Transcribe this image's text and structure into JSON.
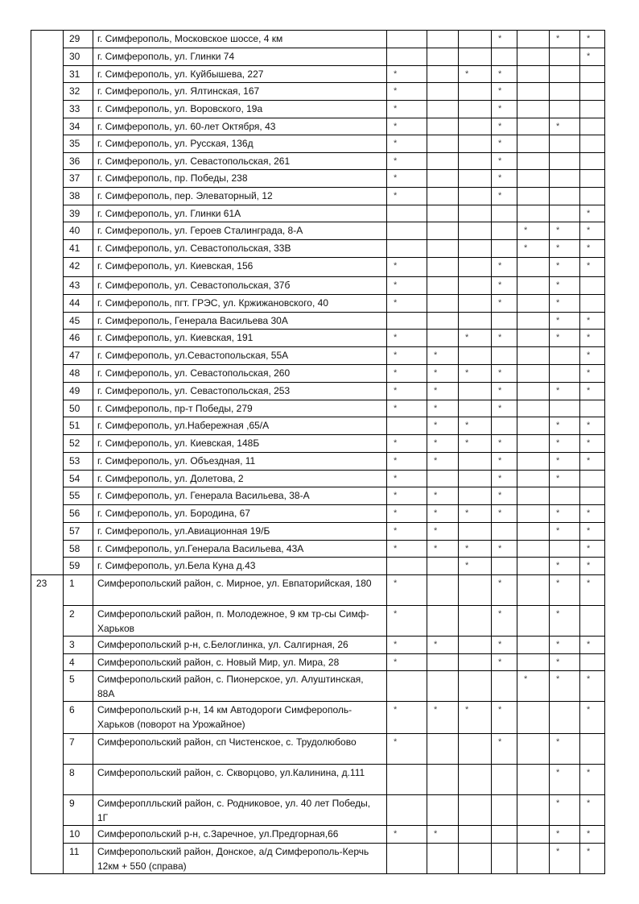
{
  "table": {
    "groups": [
      {
        "label": "",
        "rows": [
          {
            "n": "29",
            "addr": "г. Симферополь, Московское шоссе, 4 км",
            "marks": [
              "",
              "",
              "",
              "*",
              "",
              "*",
              "*"
            ]
          },
          {
            "n": "30",
            "addr": "г. Симферополь, ул. Глинки 74",
            "marks": [
              "",
              "",
              "",
              "",
              "",
              "",
              "*"
            ]
          },
          {
            "n": "31",
            "addr": "г. Симферополь, ул. Куйбышева, 227",
            "marks": [
              "*",
              "",
              "*",
              "*",
              "",
              "",
              ""
            ]
          },
          {
            "n": "32",
            "addr": "г. Симферополь, ул. Ялтинская, 167",
            "marks": [
              "*",
              "",
              "",
              "*",
              "",
              "",
              ""
            ]
          },
          {
            "n": "33",
            "addr": "г. Симферополь, ул. Воровского, 19а",
            "marks": [
              "*",
              "",
              "",
              "*",
              "",
              "",
              ""
            ]
          },
          {
            "n": "34",
            "addr": "г. Симферополь, ул. 60-лет Октября, 43",
            "marks": [
              "*",
              "",
              "",
              "*",
              "",
              "*",
              ""
            ]
          },
          {
            "n": "35",
            "addr": "г. Симферополь, ул. Русская, 136д",
            "marks": [
              "*",
              "",
              "",
              "*",
              "",
              "",
              ""
            ]
          },
          {
            "n": "36",
            "addr": "г. Симферополь, ул. Севастопольская, 261",
            "marks": [
              "*",
              "",
              "",
              "*",
              "",
              "",
              ""
            ]
          },
          {
            "n": "37",
            "addr": "г. Симферополь, пр. Победы, 238",
            "marks": [
              "*",
              "",
              "",
              "*",
              "",
              "",
              ""
            ]
          },
          {
            "n": "38",
            "addr": "г. Симферополь, пер. Элеваторный, 12",
            "marks": [
              "*",
              "",
              "",
              "*",
              "",
              "",
              ""
            ]
          },
          {
            "n": "39",
            "addr": "г. Симферополь, ул. Глинки 61А",
            "marks": [
              "",
              "",
              "",
              "",
              "",
              "",
              "*"
            ]
          },
          {
            "n": "40",
            "addr": "г. Симферополь, ул. Героев Сталинграда, 8-А",
            "marks": [
              "",
              "",
              "",
              "",
              "*",
              "*",
              "*"
            ]
          },
          {
            "n": "41",
            "addr": "г. Симферополь, ул. Севастопольская, 33В",
            "marks": [
              "",
              "",
              "",
              "",
              "*",
              "*",
              "*"
            ]
          },
          {
            "n": "42",
            "addr": "г. Симферополь, ул. Киевская, 156",
            "marks": [
              "*",
              "",
              "",
              "*",
              "",
              "*",
              "*"
            ]
          },
          {
            "n": "43",
            "addr": "г. Симферополь, ул. Севастопольская, 37б",
            "marks": [
              "*",
              "",
              "",
              "*",
              "",
              "*",
              ""
            ]
          },
          {
            "n": "44",
            "addr": "г. Симферополь, пгт. ГРЭС, ул. Кржижановского, 40",
            "marks": [
              "*",
              "",
              "",
              "*",
              "",
              "*",
              ""
            ]
          },
          {
            "n": "45",
            "addr": "г. Симферополь, Генерала Васильева 30А",
            "marks": [
              "",
              "",
              "",
              "",
              "",
              "*",
              "*"
            ]
          },
          {
            "n": "46",
            "addr": "г. Симферополь, ул. Киевская, 191",
            "marks": [
              "*",
              "",
              "*",
              "*",
              "",
              "*",
              "*"
            ]
          },
          {
            "n": "47",
            "addr": "г. Симферополь, ул.Севастопольская, 55А",
            "marks": [
              "*",
              "*",
              "",
              "",
              "",
              "",
              "*"
            ]
          },
          {
            "n": "48",
            "addr": "г. Симферополь, ул. Севастопольская, 260",
            "marks": [
              "*",
              "*",
              "*",
              "*",
              "",
              "",
              "*"
            ]
          },
          {
            "n": "49",
            "addr": "г. Симферополь, ул. Севастопольская, 253",
            "marks": [
              "*",
              "*",
              "",
              "*",
              "",
              "*",
              "*"
            ]
          },
          {
            "n": "50",
            "addr": "г. Симферополь, пр-т Победы, 279",
            "marks": [
              "*",
              "*",
              "",
              "*",
              "",
              "",
              ""
            ]
          },
          {
            "n": "51",
            "addr": "г. Симферополь, ул.Набережная ,65/А",
            "marks": [
              "",
              "*",
              "*",
              "",
              "",
              "*",
              "*"
            ]
          },
          {
            "n": "52",
            "addr": "г. Симферополь, ул. Киевская, 148Б",
            "marks": [
              "*",
              "*",
              "*",
              "*",
              "",
              "*",
              "*"
            ]
          },
          {
            "n": "53",
            "addr": "г. Симферополь, ул. Объездная, 11",
            "marks": [
              "*",
              "*",
              "",
              "*",
              "",
              "*",
              "*"
            ]
          },
          {
            "n": "54",
            "addr": "г. Симферополь, ул. Долетова, 2",
            "marks": [
              "*",
              "",
              "",
              "*",
              "",
              "*",
              ""
            ]
          },
          {
            "n": "55",
            "addr": "г. Симферополь, ул. Генерала Васильева, 38-А",
            "marks": [
              "*",
              "*",
              "",
              "*",
              "",
              "",
              ""
            ]
          },
          {
            "n": "56",
            "addr": "г. Симферополь, ул. Бородина, 67",
            "marks": [
              "*",
              "*",
              "*",
              "*",
              "",
              "*",
              "*"
            ]
          },
          {
            "n": "57",
            "addr": "г. Симферополь, ул.Авиационная 19/Б",
            "marks": [
              "*",
              "*",
              "",
              "",
              "",
              "*",
              "*"
            ]
          },
          {
            "n": "58",
            "addr": "г. Симферополь, ул.Генерала Васильева, 43А",
            "marks": [
              "*",
              "*",
              "*",
              "*",
              "",
              "",
              "*"
            ]
          },
          {
            "n": "59",
            "addr": "г. Симферополь, ул.Бела Куна д.43",
            "marks": [
              "",
              "",
              "*",
              "",
              "",
              "*",
              "*"
            ]
          }
        ]
      },
      {
        "label": "23",
        "rows": [
          {
            "n": "1",
            "addr": "Симферопольский район, с. Мирное, ул. Евпаторийская, 180",
            "marks": [
              "*",
              "",
              "",
              "*",
              "",
              "*",
              "*"
            ]
          },
          {
            "n": "2",
            "addr": "Симферопольский район, п. Молодежное, 9 км тр-сы Симф-Харьков",
            "marks": [
              "*",
              "",
              "",
              "*",
              "",
              "*",
              ""
            ]
          },
          {
            "n": "3",
            "addr": "Симферопольский р-н, с.Белоглинка, ул. Салгирная, 26",
            "marks": [
              "*",
              "*",
              "",
              "*",
              "",
              "*",
              "*"
            ]
          },
          {
            "n": "4",
            "addr": "Симферопольский район, с. Новый Мир, ул. Мира, 28",
            "marks": [
              "*",
              "",
              "",
              "*",
              "",
              "*",
              ""
            ]
          },
          {
            "n": "5",
            "addr": "Симферопольский район, с. Пионерское, ул. Алуштинская, 88А",
            "marks": [
              "",
              "",
              "",
              "",
              "*",
              "*",
              "*"
            ]
          },
          {
            "n": "6",
            "addr": "Симферопольский р-н, 14 км Автодороги Симферополь- Харьков (поворот на Урожайное)",
            "marks": [
              "*",
              "*",
              "*",
              "*",
              "",
              "",
              "*"
            ]
          },
          {
            "n": "7",
            "addr": "Симферопольский район, сп Чистенское, с. Трудолюбово",
            "marks": [
              "*",
              "",
              "",
              "*",
              "",
              "*",
              ""
            ]
          },
          {
            "n": "8",
            "addr": "Симферопольский район, с. Скворцово, ул.Калинина, д.111",
            "marks": [
              "",
              "",
              "",
              "",
              "",
              "*",
              "*"
            ]
          },
          {
            "n": "9",
            "addr": "Симфероплльский район, с. Родниковое, ул. 40 лет Победы, 1Г",
            "marks": [
              "",
              "",
              "",
              "",
              "",
              "*",
              "*"
            ]
          },
          {
            "n": "10",
            "addr": "Симферопольский р-н, с.Заречное, ул.Предгорная,66",
            "marks": [
              "*",
              "*",
              "",
              "",
              "",
              "*",
              "*"
            ]
          },
          {
            "n": "11",
            "addr": "Симферопольский район, Донское, а/д Симферополь-Керчь 12км + 550 (справа)",
            "marks": [
              "",
              "",
              "",
              "",
              "",
              "*",
              "*"
            ]
          }
        ]
      }
    ]
  }
}
